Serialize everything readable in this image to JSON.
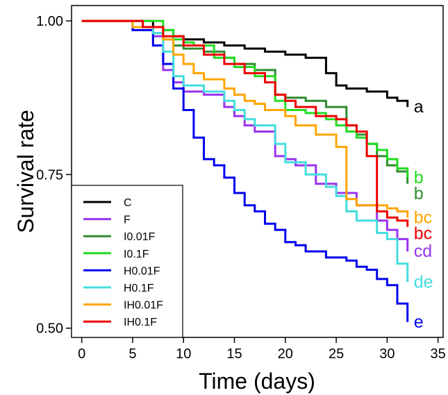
{
  "chart_data": {
    "type": "line",
    "xlabel": "Time (days)",
    "ylabel": "Survival rate",
    "xlim": [
      -1,
      35.5
    ],
    "ylim": [
      0.485,
      1.025
    ],
    "xticks": [
      0,
      5,
      10,
      15,
      20,
      25,
      30,
      35
    ],
    "yticks": [
      0.5,
      0.75,
      1.0
    ],
    "ytick_labels": [
      "0.50",
      "0.75",
      "1.00"
    ],
    "grid": false,
    "legend_position": "bottom-left",
    "series": [
      {
        "name": "C",
        "color": "#000000",
        "label": "a",
        "x": [
          0,
          7,
          8,
          9,
          10,
          12,
          14,
          16,
          18,
          20,
          22,
          24,
          25,
          26,
          28,
          30,
          31,
          32
        ],
        "y": [
          1.0,
          0.99,
          0.985,
          0.975,
          0.97,
          0.965,
          0.96,
          0.955,
          0.95,
          0.945,
          0.94,
          0.915,
          0.895,
          0.89,
          0.885,
          0.875,
          0.87,
          0.86
        ]
      },
      {
        "name": "F",
        "color": "#9933ee",
        "label": "cd",
        "x": [
          0,
          5,
          7,
          8,
          9,
          10,
          12,
          14,
          15,
          16,
          17,
          19,
          20,
          21,
          23,
          25,
          27,
          29,
          30,
          31,
          32
        ],
        "y": [
          1.0,
          0.99,
          0.975,
          0.92,
          0.9,
          0.885,
          0.88,
          0.86,
          0.845,
          0.83,
          0.82,
          0.78,
          0.775,
          0.765,
          0.735,
          0.72,
          0.7,
          0.675,
          0.66,
          0.645,
          0.625
        ]
      },
      {
        "name": "I0.01F",
        "color": "#2e8b2e",
        "label": "b",
        "x": [
          0,
          6,
          7,
          8,
          9,
          10,
          12,
          14,
          15,
          17,
          19,
          20,
          22,
          24,
          26,
          27,
          28,
          29,
          30,
          31,
          32
        ],
        "y": [
          1.0,
          0.99,
          0.98,
          0.97,
          0.96,
          0.955,
          0.95,
          0.94,
          0.93,
          0.92,
          0.88,
          0.875,
          0.87,
          0.86,
          0.83,
          0.815,
          0.8,
          0.78,
          0.765,
          0.755,
          0.735
        ]
      },
      {
        "name": "I0.1F",
        "color": "#22dd22",
        "label": "b",
        "x": [
          0,
          8,
          9,
          10,
          11,
          13,
          15,
          17,
          19,
          20,
          22,
          24,
          25,
          26,
          27,
          28,
          29,
          30,
          31,
          32
        ],
        "y": [
          1.0,
          0.985,
          0.97,
          0.965,
          0.96,
          0.94,
          0.925,
          0.91,
          0.87,
          0.855,
          0.85,
          0.84,
          0.83,
          0.82,
          0.81,
          0.8,
          0.79,
          0.775,
          0.76,
          0.745
        ]
      },
      {
        "name": "H0.01F",
        "color": "#0000ee",
        "label": "e",
        "x": [
          0,
          5,
          7,
          8,
          9,
          10,
          11,
          12,
          13,
          14,
          15,
          16,
          17,
          18,
          19,
          20,
          21,
          22,
          24,
          26,
          27,
          28,
          29,
          30,
          31,
          32
        ],
        "y": [
          1.0,
          0.985,
          0.96,
          0.93,
          0.89,
          0.855,
          0.81,
          0.775,
          0.765,
          0.745,
          0.72,
          0.7,
          0.69,
          0.67,
          0.66,
          0.64,
          0.635,
          0.625,
          0.615,
          0.61,
          0.6,
          0.595,
          0.58,
          0.57,
          0.54,
          0.51
        ]
      },
      {
        "name": "H0.1F",
        "color": "#44dddd",
        "label": "de",
        "x": [
          0,
          5,
          7,
          8,
          9,
          10,
          12,
          14,
          15,
          16,
          17,
          19,
          20,
          22,
          24,
          25,
          26,
          27,
          29,
          30,
          31,
          32
        ],
        "y": [
          1.0,
          0.99,
          0.98,
          0.95,
          0.91,
          0.895,
          0.885,
          0.87,
          0.855,
          0.84,
          0.83,
          0.8,
          0.77,
          0.75,
          0.73,
          0.715,
          0.69,
          0.675,
          0.655,
          0.645,
          0.605,
          0.575
        ]
      },
      {
        "name": "IH0.01F",
        "color": "#ffa500",
        "label": "bc",
        "x": [
          0,
          5,
          8,
          9,
          10,
          11,
          12,
          14,
          15,
          16,
          17,
          18,
          20,
          21,
          23,
          25,
          26,
          27,
          30,
          31,
          32
        ],
        "y": [
          1.0,
          0.99,
          0.97,
          0.945,
          0.93,
          0.915,
          0.905,
          0.89,
          0.88,
          0.87,
          0.865,
          0.855,
          0.845,
          0.83,
          0.815,
          0.795,
          0.71,
          0.7,
          0.695,
          0.69,
          0.68
        ]
      },
      {
        "name": "IH0.1F",
        "color": "#ee0000",
        "label": "bc",
        "x": [
          0,
          6,
          8,
          10,
          12,
          14,
          16,
          18,
          19,
          20,
          21,
          23,
          25,
          26,
          27,
          28,
          29,
          30,
          31,
          32
        ],
        "y": [
          1.0,
          0.99,
          0.975,
          0.96,
          0.945,
          0.93,
          0.915,
          0.9,
          0.88,
          0.87,
          0.86,
          0.845,
          0.84,
          0.83,
          0.82,
          0.78,
          0.69,
          0.68,
          0.675,
          0.665
        ]
      }
    ]
  }
}
